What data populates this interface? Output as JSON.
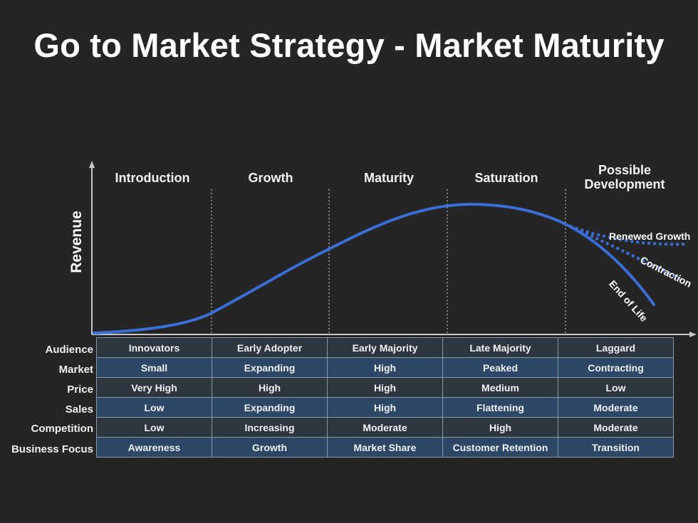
{
  "title": "Go to Market Strategy - Market Maturity",
  "y_axis_label": "Revenue",
  "phases": [
    "Introduction",
    "Growth",
    "Maturity",
    "Saturation",
    "Possible Development"
  ],
  "annotations": {
    "renewed_growth": "Renewed Growth",
    "contraction": "Contraction",
    "end_of_life": "End of Life"
  },
  "colors": {
    "background": "#252525",
    "curve": "#3a6fd8",
    "table_dark": "#2e3640",
    "table_blue": "#2d4766"
  },
  "table": {
    "rows": [
      {
        "label": "Audience",
        "cells": [
          "Innovators",
          "Early Adopter",
          "Early Majority",
          "Late Majority",
          "Laggard"
        ]
      },
      {
        "label": "Market",
        "cells": [
          "Small",
          "Expanding",
          "High",
          "Peaked",
          "Contracting"
        ]
      },
      {
        "label": "Price",
        "cells": [
          "Very High",
          "High",
          "High",
          "Medium",
          "Low"
        ]
      },
      {
        "label": "Sales",
        "cells": [
          "Low",
          "Expanding",
          "High",
          "Flattening",
          "Moderate"
        ]
      },
      {
        "label": "Competition",
        "cells": [
          "Low",
          "Increasing",
          "Moderate",
          "High",
          "Moderate"
        ]
      },
      {
        "label": "Business Focus",
        "cells": [
          "Awareness",
          "Growth",
          "Market Share",
          "Customer Retention",
          "Transition"
        ]
      }
    ]
  }
}
